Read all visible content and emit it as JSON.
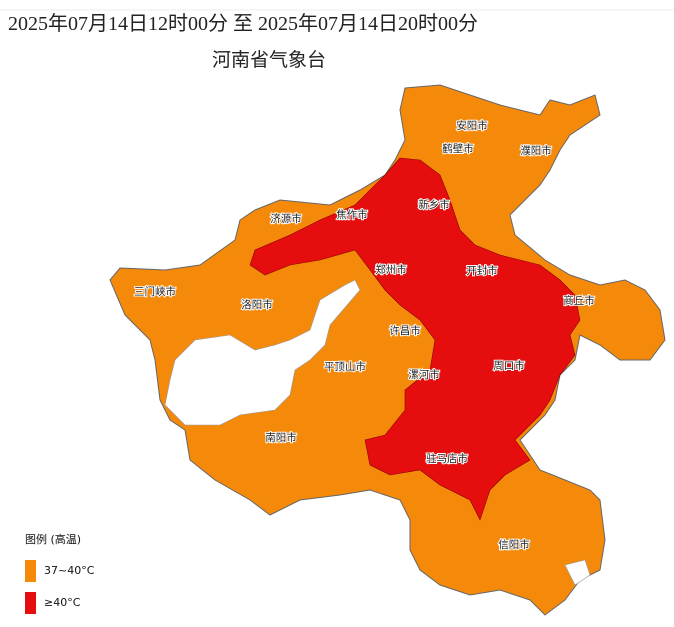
{
  "header": {
    "title": "2025年07月14日12时00分 至 2025年07月14日20时00分",
    "subtitle": "河南省气象台"
  },
  "map": {
    "cities": [
      {
        "name": "安阳市"
      },
      {
        "name": "鹤壁市"
      },
      {
        "name": "濮阳市"
      },
      {
        "name": "新乡市"
      },
      {
        "name": "焦作市"
      },
      {
        "name": "济源市"
      },
      {
        "name": "郑州市"
      },
      {
        "name": "开封市"
      },
      {
        "name": "三门峡市"
      },
      {
        "name": "洛阳市"
      },
      {
        "name": "商丘市"
      },
      {
        "name": "许昌市"
      },
      {
        "name": "平顶山市"
      },
      {
        "name": "周口市"
      },
      {
        "name": "漯河市"
      },
      {
        "name": "南阳市"
      },
      {
        "name": "驻马店市"
      },
      {
        "name": "信阳市"
      }
    ]
  },
  "legend": {
    "title": "图例 (高温)",
    "items": [
      {
        "label": "37~40°C",
        "color": "#f58a0a"
      },
      {
        "label": "≥40°C",
        "color": "#e50d0d"
      }
    ]
  }
}
